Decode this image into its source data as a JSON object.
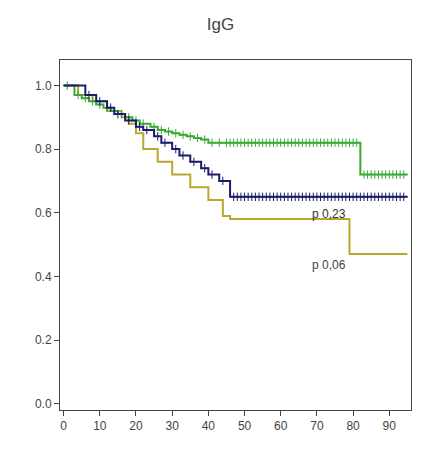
{
  "chart_data": {
    "type": "line",
    "title": "IgG",
    "xlim": [
      -1,
      96
    ],
    "ylim": [
      -0.02,
      1.08
    ],
    "xticks": [
      0,
      10,
      20,
      30,
      40,
      50,
      60,
      70,
      80,
      90
    ],
    "yticks": [
      {
        "value": 0.0,
        "label": "0.0"
      },
      0.2,
      0.4,
      0.6,
      0.8,
      {
        "value": 1.0,
        "label": "1.0"
      }
    ],
    "grid": false,
    "series": [
      {
        "type": "step",
        "color": "#b8a830",
        "x": [
          0,
          4,
          8,
          12,
          16,
          18,
          20,
          22,
          26,
          30,
          35,
          40,
          44,
          46,
          79,
          95
        ],
        "values": [
          1.0,
          0.97,
          0.95,
          0.92,
          0.9,
          0.88,
          0.85,
          0.8,
          0.76,
          0.72,
          0.68,
          0.64,
          0.59,
          0.58,
          0.47,
          0.47
        ]
      },
      {
        "type": "step",
        "color": "#3aaa35",
        "x": [
          0,
          3,
          5,
          7,
          9,
          11,
          13,
          15,
          17,
          19,
          21,
          24,
          26,
          28,
          30,
          32,
          34,
          36,
          38,
          40,
          42,
          44,
          82,
          95
        ],
        "values": [
          1.0,
          0.97,
          0.96,
          0.95,
          0.94,
          0.93,
          0.92,
          0.91,
          0.9,
          0.89,
          0.88,
          0.87,
          0.86,
          0.855,
          0.85,
          0.845,
          0.84,
          0.835,
          0.83,
          0.82,
          0.82,
          0.82,
          0.72,
          0.72
        ]
      },
      {
        "type": "scatter",
        "marker": "plus",
        "color": "#3aaa35",
        "x": [
          1,
          4,
          6,
          8,
          10,
          12,
          14,
          16,
          18,
          20,
          22,
          25,
          27,
          29,
          31,
          33,
          35,
          37,
          39,
          41,
          43,
          45,
          46,
          47,
          48,
          49,
          50,
          51,
          52,
          53,
          54,
          55,
          56,
          57,
          58,
          59,
          60,
          61,
          62,
          63,
          64,
          65,
          66,
          67,
          68,
          69,
          70,
          71,
          72,
          73,
          74,
          75,
          76,
          77,
          78,
          79,
          80,
          81,
          83,
          84,
          85,
          86,
          87,
          88,
          89,
          90,
          91,
          92,
          93,
          94
        ],
        "values": [
          1.0,
          0.97,
          0.96,
          0.95,
          0.94,
          0.93,
          0.92,
          0.91,
          0.9,
          0.89,
          0.88,
          0.87,
          0.86,
          0.855,
          0.85,
          0.845,
          0.84,
          0.835,
          0.83,
          0.82,
          0.82,
          0.82,
          0.82,
          0.82,
          0.82,
          0.82,
          0.82,
          0.82,
          0.82,
          0.82,
          0.82,
          0.82,
          0.82,
          0.82,
          0.82,
          0.82,
          0.82,
          0.82,
          0.82,
          0.82,
          0.82,
          0.82,
          0.82,
          0.82,
          0.82,
          0.82,
          0.82,
          0.82,
          0.82,
          0.82,
          0.82,
          0.82,
          0.82,
          0.82,
          0.82,
          0.82,
          0.82,
          0.82,
          0.72,
          0.72,
          0.72,
          0.72,
          0.72,
          0.72,
          0.72,
          0.72,
          0.72,
          0.72,
          0.72,
          0.72
        ]
      },
      {
        "type": "step",
        "color": "#1c1c6b",
        "x": [
          0,
          6,
          9,
          12,
          14,
          17,
          20,
          22,
          25,
          27,
          30,
          32,
          35,
          38,
          40,
          43,
          46,
          95
        ],
        "values": [
          1.0,
          0.97,
          0.95,
          0.93,
          0.91,
          0.89,
          0.87,
          0.86,
          0.84,
          0.82,
          0.8,
          0.78,
          0.76,
          0.74,
          0.72,
          0.7,
          0.65,
          0.65
        ]
      },
      {
        "type": "scatter",
        "marker": "plus",
        "color": "#1c1c6b",
        "x": [
          7,
          10,
          13,
          15,
          18,
          21,
          23,
          26,
          28,
          31,
          33,
          36,
          39,
          41,
          44,
          47,
          48,
          49,
          50,
          51,
          52,
          53,
          54,
          55,
          56,
          57,
          58,
          59,
          60,
          61,
          62,
          63,
          64,
          65,
          66,
          67,
          68,
          69,
          70,
          71,
          72,
          73,
          74,
          75,
          76,
          77,
          78,
          79,
          80,
          81,
          82,
          83,
          84,
          85,
          86,
          87,
          88,
          89,
          90,
          91,
          92,
          93,
          94
        ],
        "values": [
          0.97,
          0.95,
          0.93,
          0.91,
          0.89,
          0.87,
          0.86,
          0.84,
          0.82,
          0.8,
          0.78,
          0.76,
          0.74,
          0.72,
          0.7,
          0.65,
          0.65,
          0.65,
          0.65,
          0.65,
          0.65,
          0.65,
          0.65,
          0.65,
          0.65,
          0.65,
          0.65,
          0.65,
          0.65,
          0.65,
          0.65,
          0.65,
          0.65,
          0.65,
          0.65,
          0.65,
          0.65,
          0.65,
          0.65,
          0.65,
          0.65,
          0.65,
          0.65,
          0.65,
          0.65,
          0.65,
          0.65,
          0.65,
          0.65,
          0.65,
          0.65,
          0.65,
          0.65,
          0.65,
          0.65,
          0.65,
          0.65,
          0.65,
          0.65,
          0.65,
          0.65,
          0.65,
          0.65
        ]
      }
    ],
    "annotations": [
      {
        "text": "p 0,23",
        "x": 68,
        "y": 0.595,
        "color": "#333333"
      },
      {
        "text": "p 0,06",
        "x": 68,
        "y": 0.435,
        "color": "#444444"
      }
    ]
  }
}
